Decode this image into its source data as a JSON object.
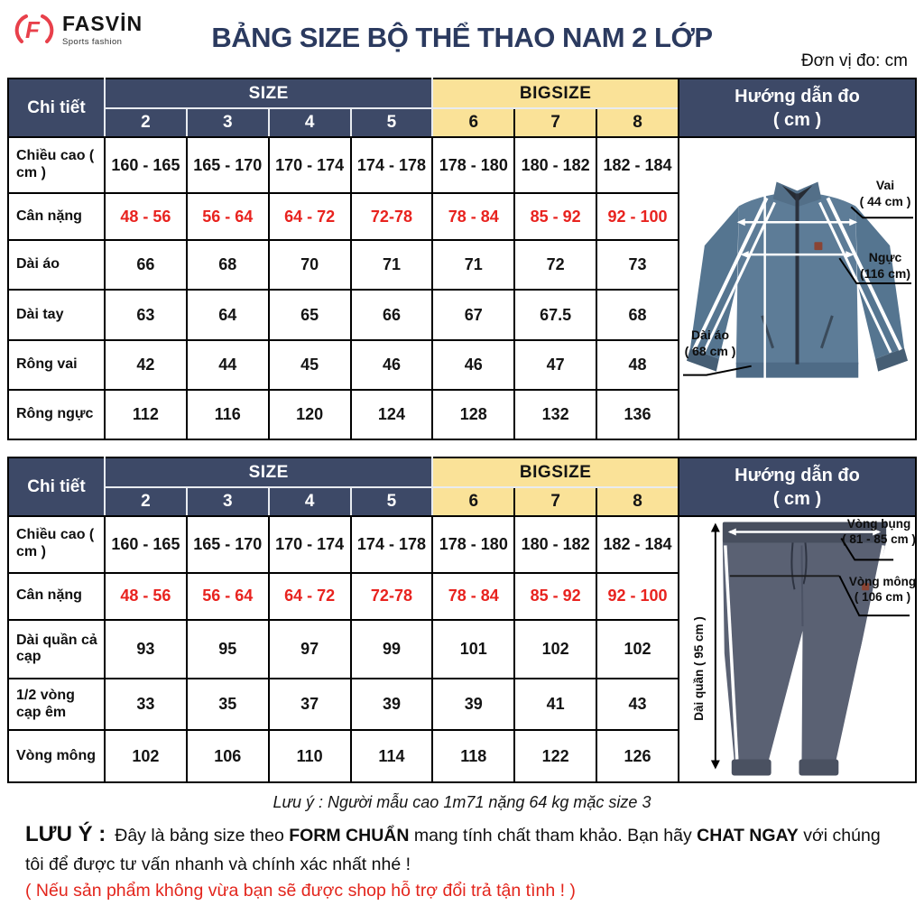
{
  "header": {
    "brand": "FASVİN",
    "brand_sub": "Sports fashion",
    "title": "BẢNG SIZE BỘ THỂ THAO NAM 2 LỚP",
    "unit_note": "Đơn vị đo: cm"
  },
  "colors": {
    "navy": "#3d4967",
    "yellow": "#fae298",
    "red": "#e8231f",
    "title_navy": "#2b3a5f",
    "logo_red": "#e8404b",
    "jacket_blue": "#5d7c97",
    "pants_gray": "#5a6173"
  },
  "tables": [
    {
      "id": "jacket",
      "corner_label": "Chi tiết",
      "size_group_label": "SIZE",
      "bigsize_group_label": "BIGSIZE",
      "size_columns": [
        "2",
        "3",
        "4",
        "5"
      ],
      "bigsize_columns": [
        "6",
        "7",
        "8"
      ],
      "rows": [
        {
          "label": "Chiều cao ( cm )",
          "red": false,
          "values": [
            "160 - 165",
            "165 - 170",
            "170 - 174",
            "174 - 178",
            "178 - 180",
            "180 - 182",
            "182 - 184"
          ]
        },
        {
          "label": "Cân nặng",
          "red": true,
          "values": [
            "48 - 56",
            "56 - 64",
            "64 - 72",
            "72-78",
            "78 - 84",
            "85 - 92",
            "92 - 100"
          ]
        },
        {
          "label": "Dài áo",
          "red": false,
          "values": [
            "66",
            "68",
            "70",
            "71",
            "71",
            "72",
            "73"
          ]
        },
        {
          "label": "Dài tay",
          "red": false,
          "values": [
            "63",
            "64",
            "65",
            "66",
            "67",
            "67.5",
            "68"
          ]
        },
        {
          "label": "Rông vai",
          "red": false,
          "values": [
            "42",
            "44",
            "45",
            "46",
            "46",
            "47",
            "48"
          ]
        },
        {
          "label": "Rông ngực",
          "red": false,
          "values": [
            "112",
            "116",
            "120",
            "124",
            "128",
            "132",
            "136"
          ]
        }
      ],
      "guide": {
        "title1": "Hướng dẫn đo",
        "title2": "( cm )",
        "annotations": [
          {
            "id": "vai",
            "label": "Vai",
            "value": "( 44 cm )"
          },
          {
            "id": "nguc",
            "label": "Ngực",
            "value": "(116 cm)"
          },
          {
            "id": "dai-ao",
            "label": "Dài áo",
            "value": "( 68 cm )"
          }
        ]
      }
    },
    {
      "id": "pants",
      "corner_label": "Chi tiết",
      "size_group_label": "SIZE",
      "bigsize_group_label": "BIGSIZE",
      "size_columns": [
        "2",
        "3",
        "4",
        "5"
      ],
      "bigsize_columns": [
        "6",
        "7",
        "8"
      ],
      "rows": [
        {
          "label": "Chiều cao ( cm )",
          "red": false,
          "values": [
            "160 - 165",
            "165 - 170",
            "170 - 174",
            "174 - 178",
            "178 - 180",
            "180 - 182",
            "182 - 184"
          ]
        },
        {
          "label": "Cân nặng",
          "red": true,
          "values": [
            "48 - 56",
            "56 - 64",
            "64 - 72",
            "72-78",
            "78 - 84",
            "85 - 92",
            "92 - 100"
          ]
        },
        {
          "label": "Dài quần cả cạp",
          "red": false,
          "values": [
            "93",
            "95",
            "97",
            "99",
            "101",
            "102",
            "102"
          ]
        },
        {
          "label": "1/2 vòng cạp êm",
          "red": false,
          "values": [
            "33",
            "35",
            "37",
            "39",
            "39",
            "41",
            "43"
          ]
        },
        {
          "label": "Vòng mông",
          "red": false,
          "values": [
            "102",
            "106",
            "110",
            "114",
            "118",
            "122",
            "126"
          ]
        }
      ],
      "guide": {
        "title1": "Hướng dẫn đo",
        "title2": "( cm )",
        "annotations": [
          {
            "id": "vong-bung",
            "label": "Vòng bụng",
            "value": "( 81 - 85 cm )"
          },
          {
            "id": "vong-mong",
            "label": "Vòng mông",
            "value": "( 106 cm )"
          },
          {
            "id": "dai-quan",
            "label": "Dài quần ( 95 cm )",
            "value": ""
          }
        ]
      }
    }
  ],
  "footer": {
    "model_note": "Lưu ý : Người mẫu cao 1m71 nặng 64 kg mặc size 3",
    "warning_label": "LƯU Ý :",
    "warning_segments": [
      {
        "text": "Đây là bảng size theo ",
        "bold": false
      },
      {
        "text": "FORM CHUẨN",
        "bold": true
      },
      {
        "text": " mang tính chất tham khảo. Bạn hãy ",
        "bold": false
      },
      {
        "text": "CHAT NGAY",
        "bold": true
      },
      {
        "text": " với chúng tôi để được tư vấn nhanh và chính xác nhất nhé !",
        "bold": false
      }
    ],
    "exchange_note": "( Nếu sản phẩm không vừa bạn sẽ được shop hỗ trợ đổi trả tận tình ! )"
  }
}
